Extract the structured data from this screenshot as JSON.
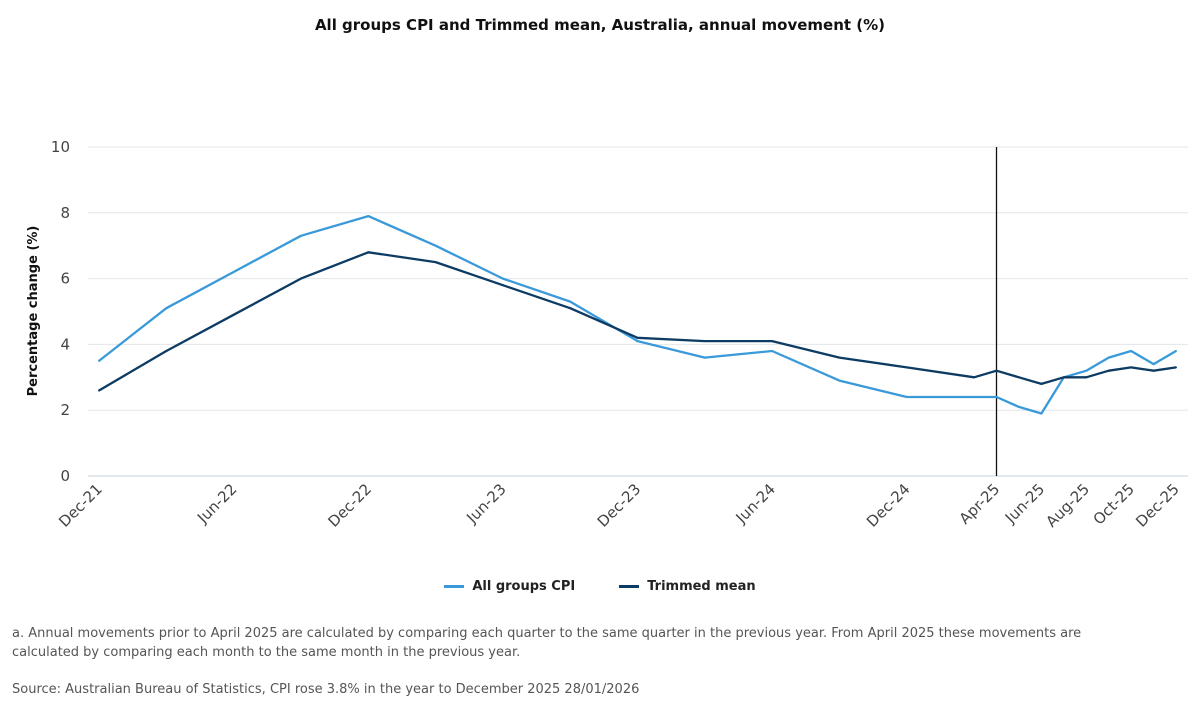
{
  "chart_data": {
    "type": "line",
    "title": "All groups CPI and Trimmed mean, Australia, annual movement (%)",
    "ylabel": "Percentage change (%)",
    "xlabel": "",
    "ylim": [
      0,
      10
    ],
    "yticks": [
      0,
      2,
      4,
      6,
      8,
      10
    ],
    "xlim": [
      "2021-12",
      "2025-12"
    ],
    "xticks": [
      {
        "date": "2021-12",
        "label": "Dec-21"
      },
      {
        "date": "2022-06",
        "label": "Jun-22"
      },
      {
        "date": "2022-12",
        "label": "Dec-22"
      },
      {
        "date": "2023-06",
        "label": "Jun-23"
      },
      {
        "date": "2023-12",
        "label": "Dec-23"
      },
      {
        "date": "2024-06",
        "label": "Jun-24"
      },
      {
        "date": "2024-12",
        "label": "Dec-24"
      },
      {
        "date": "2025-04",
        "label": "Apr-25"
      },
      {
        "date": "2025-06",
        "label": "Jun-25"
      },
      {
        "date": "2025-08",
        "label": "Aug-25"
      },
      {
        "date": "2025-10",
        "label": "Oct-25"
      },
      {
        "date": "2025-12",
        "label": "Dec-25"
      }
    ],
    "grid": "horizontal",
    "reference_line": {
      "date": "2025-04"
    },
    "legend_position": "bottom",
    "series": [
      {
        "name": "All groups CPI",
        "color": "#3a9ad9",
        "points": [
          [
            "2021-12",
            3.5
          ],
          [
            "2022-03",
            5.1
          ],
          [
            "2022-06",
            6.2
          ],
          [
            "2022-09",
            7.3
          ],
          [
            "2022-12",
            7.9
          ],
          [
            "2023-03",
            7.0
          ],
          [
            "2023-06",
            6.0
          ],
          [
            "2023-09",
            5.3
          ],
          [
            "2023-12",
            4.1
          ],
          [
            "2024-03",
            3.6
          ],
          [
            "2024-06",
            3.8
          ],
          [
            "2024-09",
            2.9
          ],
          [
            "2024-12",
            2.4
          ],
          [
            "2025-03",
            2.4
          ],
          [
            "2025-04",
            2.4
          ],
          [
            "2025-05",
            2.1
          ],
          [
            "2025-06",
            1.9
          ],
          [
            "2025-07",
            3.0
          ],
          [
            "2025-08",
            3.2
          ],
          [
            "2025-09",
            3.6
          ],
          [
            "2025-10",
            3.8
          ],
          [
            "2025-11",
            3.4
          ],
          [
            "2025-12",
            3.8
          ]
        ]
      },
      {
        "name": "Trimmed mean",
        "color": "#0d3b63",
        "points": [
          [
            "2021-12",
            2.6
          ],
          [
            "2022-03",
            3.8
          ],
          [
            "2022-06",
            4.9
          ],
          [
            "2022-09",
            6.0
          ],
          [
            "2022-12",
            6.8
          ],
          [
            "2023-03",
            6.5
          ],
          [
            "2023-06",
            5.8
          ],
          [
            "2023-09",
            5.1
          ],
          [
            "2023-12",
            4.2
          ],
          [
            "2024-03",
            4.1
          ],
          [
            "2024-06",
            4.1
          ],
          [
            "2024-09",
            3.6
          ],
          [
            "2024-12",
            3.3
          ],
          [
            "2025-03",
            3.0
          ],
          [
            "2025-04",
            3.2
          ],
          [
            "2025-05",
            3.0
          ],
          [
            "2025-06",
            2.8
          ],
          [
            "2025-07",
            3.0
          ],
          [
            "2025-08",
            3.0
          ],
          [
            "2025-09",
            3.2
          ],
          [
            "2025-10",
            3.3
          ],
          [
            "2025-11",
            3.2
          ],
          [
            "2025-12",
            3.3
          ]
        ]
      }
    ]
  },
  "notes": {
    "footnote": "a. Annual movements prior to April 2025 are calculated by comparing each quarter to the same quarter in the previous year. From April 2025 these movements are calculated by comparing each month to the same month in the previous year.",
    "source": "Source: Australian Bureau of Statistics, CPI rose 3.8% in the year to December 2025 28/01/2026"
  }
}
